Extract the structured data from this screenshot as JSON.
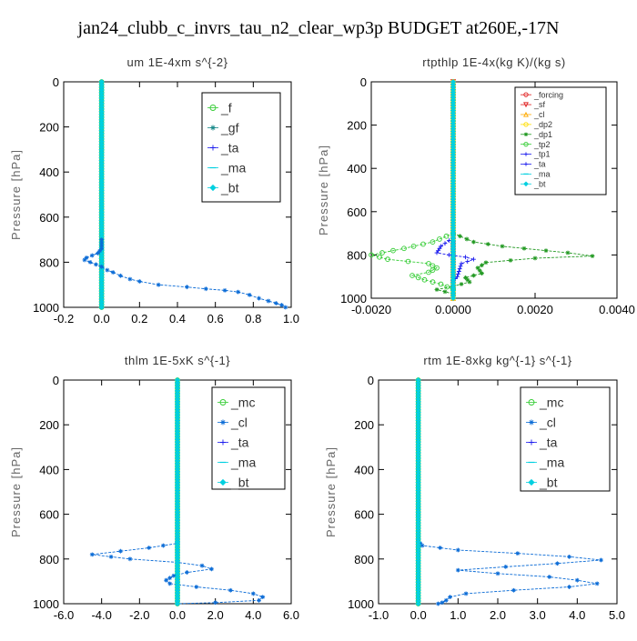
{
  "figure_title": "jan24_clubb_c_invrs_tau_n2_clear_wp3p  BUDGET at260E,-17N",
  "colors": {
    "green": "#33cc33",
    "green_dark": "#229922",
    "blue": "#0a6bd6",
    "navy": "#1a1aee",
    "red": "#e02020",
    "cyan": "#00d0e0",
    "orange": "#ffaa00",
    "yellow": "#ffdd00",
    "teal": "#1a8a8a"
  },
  "chart_data": [
    {
      "type": "line",
      "title": "um   1E-4xm s^{-2}",
      "ylabel": "Pressure [hPa]",
      "ylim": [
        1000,
        0
      ],
      "xlim": [
        -0.2,
        1.0
      ],
      "x_ticks": [
        "-0.2",
        "0.0",
        "0.2",
        "0.4",
        "0.6",
        "0.8",
        "1.0"
      ],
      "y_ticks": [
        "0",
        "200",
        "400",
        "600",
        "800",
        "1000"
      ],
      "legend_position": "top-right",
      "series": [
        {
          "name": "_f",
          "color": "green",
          "marker": "circle",
          "points": [
            [
              0.0,
              0
            ],
            [
              0.0,
              1000
            ]
          ]
        },
        {
          "name": "_gf",
          "color": "teal",
          "marker": "star",
          "points": [
            [
              0.0,
              0
            ],
            [
              0.0,
              1000
            ]
          ]
        },
        {
          "name": "_ta",
          "color": "navy",
          "marker": "plus",
          "points": [
            [
              0.0,
              0
            ],
            [
              0.0,
              1000
            ]
          ]
        },
        {
          "name": "_ma",
          "color": "cyan",
          "marker": "dash",
          "points": [
            [
              0.0,
              0
            ],
            [
              0.0,
              1000
            ]
          ]
        },
        {
          "name": "_bt",
          "color": "cyan",
          "marker": "diamond",
          "points": [
            [
              0.0,
              0
            ],
            [
              0.0,
              1000
            ]
          ]
        },
        {
          "name": "",
          "color": "blue",
          "marker": "star",
          "points": [
            [
              0.0,
              700
            ],
            [
              0.0,
              740
            ],
            [
              -0.02,
              760
            ],
            [
              -0.08,
              780
            ],
            [
              -0.09,
              790
            ],
            [
              -0.06,
              800
            ],
            [
              -0.03,
              810
            ],
            [
              0.0,
              820
            ],
            [
              0.03,
              835
            ],
            [
              0.06,
              845
            ],
            [
              0.1,
              860
            ],
            [
              0.15,
              875
            ],
            [
              0.2,
              885
            ],
            [
              0.3,
              900
            ],
            [
              0.45,
              910
            ],
            [
              0.55,
              918
            ],
            [
              0.65,
              925
            ],
            [
              0.72,
              932
            ],
            [
              0.78,
              945
            ],
            [
              0.83,
              960
            ],
            [
              0.88,
              972
            ],
            [
              0.92,
              982
            ],
            [
              0.95,
              990
            ],
            [
              0.97,
              1000
            ]
          ]
        }
      ]
    },
    {
      "type": "line",
      "title": "rtpthlp   1E-4x(kg K)/(kg s)",
      "ylabel": "Pressure [hPa]",
      "ylim": [
        1000,
        0
      ],
      "xlim": [
        -0.002,
        0.004
      ],
      "x_ticks": [
        "-0.0020",
        "0.0000",
        "0.0020",
        "0.0040"
      ],
      "y_ticks": [
        "0",
        "200",
        "400",
        "600",
        "800",
        "1000"
      ],
      "legend_position": "top-right",
      "series": [
        {
          "name": "_forcing",
          "color": "red",
          "marker": "circle",
          "points": [
            [
              0.0,
              0
            ],
            [
              0.0,
              1000
            ]
          ]
        },
        {
          "name": "_sf",
          "color": "red",
          "marker": "triangle-down",
          "points": [
            [
              0.0,
              0
            ],
            [
              0.0,
              1000
            ]
          ]
        },
        {
          "name": "_cl",
          "color": "orange",
          "marker": "triangle",
          "points": [
            [
              0.0,
              0
            ],
            [
              0.0,
              1000
            ]
          ]
        },
        {
          "name": "_dp2",
          "color": "yellow",
          "marker": "circle",
          "points": [
            [
              0.0,
              0
            ],
            [
              0.0,
              1000
            ]
          ]
        },
        {
          "name": "_dp1",
          "color": "green_dark",
          "marker": "star",
          "points": [
            [
              0.0,
              700
            ],
            [
              0.0005,
              740
            ],
            [
              0.0012,
              760
            ],
            [
              0.0028,
              790
            ],
            [
              0.0034,
              805
            ],
            [
              0.002,
              815
            ],
            [
              0.0008,
              835
            ],
            [
              0.0006,
              860
            ],
            [
              0.0007,
              885
            ],
            [
              0.0003,
              905
            ],
            [
              0.0004,
              925
            ],
            [
              0.0,
              945
            ],
            [
              -0.0004,
              960
            ],
            [
              0.0,
              980
            ]
          ]
        },
        {
          "name": "_tp2",
          "color": "green",
          "marker": "circle",
          "points": [
            [
              0.0,
              700
            ],
            [
              -0.0005,
              740
            ],
            [
              -0.0012,
              770
            ],
            [
              -0.002,
              800
            ],
            [
              -0.0016,
              820
            ],
            [
              -0.0006,
              840
            ],
            [
              -0.0004,
              860
            ],
            [
              -0.0006,
              880
            ],
            [
              -0.001,
              895
            ],
            [
              -0.0007,
              915
            ],
            [
              -0.0003,
              935
            ],
            [
              0.0,
              960
            ]
          ]
        },
        {
          "name": "_tp1",
          "color": "navy",
          "marker": "plus",
          "points": [
            [
              0.0,
              720
            ],
            [
              -0.0003,
              760
            ],
            [
              -0.0004,
              790
            ],
            [
              -0.0001,
              800
            ],
            [
              0.0003,
              810
            ],
            [
              0.0005,
              820
            ],
            [
              0.0002,
              840
            ],
            [
              0.0001,
              900
            ],
            [
              0.0,
              920
            ]
          ]
        },
        {
          "name": "_ta",
          "color": "navy",
          "marker": "plus",
          "points": [
            [
              0.0,
              740
            ],
            [
              0.0,
              1000
            ]
          ]
        },
        {
          "name": "_ma",
          "color": "cyan",
          "marker": "dash",
          "points": [
            [
              0.0,
              0
            ],
            [
              0.0,
              1000
            ]
          ]
        },
        {
          "name": "_bt",
          "color": "cyan",
          "marker": "diamond",
          "points": [
            [
              0.0,
              0
            ],
            [
              0.0,
              1000
            ]
          ]
        }
      ]
    },
    {
      "type": "line",
      "title": "thlm   1E-5xK s^{-1}",
      "ylabel": "Pressure [hPa]",
      "ylim": [
        1000,
        0
      ],
      "xlim": [
        -6.0,
        6.0
      ],
      "x_ticks": [
        "-6.0",
        "-4.0",
        "-2.0",
        "0.0",
        "2.0",
        "4.0",
        "6.0"
      ],
      "y_ticks": [
        "0",
        "200",
        "400",
        "600",
        "800",
        "1000"
      ],
      "legend_position": "top-right",
      "series": [
        {
          "name": "_mc",
          "color": "green",
          "marker": "circle",
          "points": [
            [
              0.0,
              0
            ],
            [
              0.0,
              1000
            ]
          ]
        },
        {
          "name": "_cl",
          "color": "blue",
          "marker": "star",
          "points": [
            [
              0.0,
              700
            ],
            [
              0.0,
              730
            ],
            [
              -1.5,
              750
            ],
            [
              -3.0,
              765
            ],
            [
              -4.5,
              780
            ],
            [
              -2.5,
              800
            ],
            [
              0.0,
              815
            ],
            [
              1.3,
              830
            ],
            [
              1.8,
              845
            ],
            [
              0.5,
              860
            ],
            [
              -0.2,
              875
            ],
            [
              -0.6,
              895
            ],
            [
              -0.4,
              910
            ],
            [
              1.0,
              925
            ],
            [
              2.8,
              940
            ],
            [
              4.0,
              955
            ],
            [
              4.5,
              970
            ],
            [
              4.3,
              985
            ],
            [
              2.0,
              995
            ],
            [
              0.0,
              1000
            ]
          ]
        },
        {
          "name": "_ta",
          "color": "navy",
          "marker": "plus",
          "points": [
            [
              0.0,
              0
            ],
            [
              0.0,
              1000
            ]
          ]
        },
        {
          "name": "_ma",
          "color": "cyan",
          "marker": "dash",
          "points": [
            [
              0.0,
              0
            ],
            [
              0.0,
              1000
            ]
          ]
        },
        {
          "name": "_bt",
          "color": "cyan",
          "marker": "diamond",
          "points": [
            [
              0.0,
              0
            ],
            [
              0.0,
              1000
            ]
          ]
        }
      ]
    },
    {
      "type": "line",
      "title": "rtm   1E-8xkg kg^{-1} s^{-1}",
      "ylabel": "Pressure [hPa]",
      "ylim": [
        1000,
        0
      ],
      "xlim": [
        -1.0,
        5.0
      ],
      "x_ticks": [
        "-1.0",
        "0.0",
        "1.0",
        "2.0",
        "3.0",
        "4.0",
        "5.0"
      ],
      "y_ticks": [
        "0",
        "200",
        "400",
        "600",
        "800",
        "1000"
      ],
      "legend_position": "top-right",
      "series": [
        {
          "name": "_mc",
          "color": "green",
          "marker": "circle",
          "points": [
            [
              0.0,
              0
            ],
            [
              0.0,
              1000
            ]
          ]
        },
        {
          "name": "_cl",
          "color": "blue",
          "marker": "star",
          "points": [
            [
              0.0,
              720
            ],
            [
              0.1,
              740
            ],
            [
              1.0,
              760
            ],
            [
              2.5,
              775
            ],
            [
              3.8,
              790
            ],
            [
              4.6,
              805
            ],
            [
              3.5,
              820
            ],
            [
              2.2,
              835
            ],
            [
              1.0,
              850
            ],
            [
              2.0,
              865
            ],
            [
              3.3,
              880
            ],
            [
              4.0,
              895
            ],
            [
              4.5,
              910
            ],
            [
              3.8,
              925
            ],
            [
              2.4,
              940
            ],
            [
              1.2,
              955
            ],
            [
              0.8,
              970
            ],
            [
              0.7,
              985
            ],
            [
              0.6,
              995
            ],
            [
              0.5,
              1000
            ]
          ]
        },
        {
          "name": "_ta",
          "color": "navy",
          "marker": "plus",
          "points": [
            [
              0.0,
              0
            ],
            [
              0.0,
              1000
            ]
          ]
        },
        {
          "name": "_ma",
          "color": "cyan",
          "marker": "dash",
          "points": [
            [
              0.0,
              0
            ],
            [
              0.0,
              1000
            ]
          ]
        },
        {
          "name": "_bt",
          "color": "cyan",
          "marker": "diamond",
          "points": [
            [
              0.0,
              0
            ],
            [
              0.0,
              1000
            ]
          ]
        }
      ]
    }
  ]
}
